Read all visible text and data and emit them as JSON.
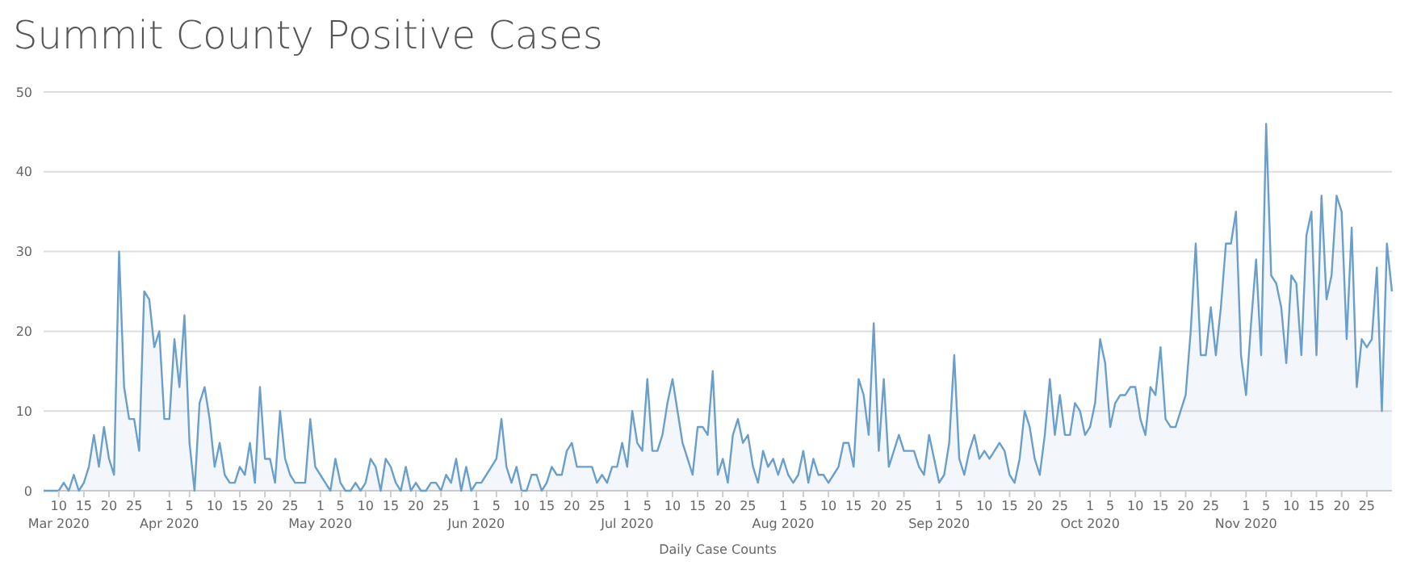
{
  "chart_data": {
    "type": "area",
    "title": "Summit County Positive Cases",
    "xlabel": "Daily Case Counts",
    "xlim": [
      "2020-03-07",
      "2020-11-30"
    ],
    "xticks": [
      {
        "value": "2020-03-10",
        "label": "10\nMar 2020"
      },
      {
        "value": "2020-03-15",
        "label": "15"
      },
      {
        "value": "2020-03-20",
        "label": "20"
      },
      {
        "value": "2020-03-25",
        "label": "25"
      },
      {
        "value": "2020-04-01",
        "label": "1\nApr 2020"
      },
      {
        "value": "2020-04-05",
        "label": "5"
      },
      {
        "value": "2020-04-10",
        "label": "10"
      },
      {
        "value": "2020-04-15",
        "label": "15"
      },
      {
        "value": "2020-04-20",
        "label": "20"
      },
      {
        "value": "2020-04-25",
        "label": "25"
      },
      {
        "value": "2020-05-01",
        "label": "1\nMay 2020"
      },
      {
        "value": "2020-05-05",
        "label": "5"
      },
      {
        "value": "2020-05-10",
        "label": "10"
      },
      {
        "value": "2020-05-15",
        "label": "15"
      },
      {
        "value": "2020-05-20",
        "label": "20"
      },
      {
        "value": "2020-05-25",
        "label": "25"
      },
      {
        "value": "2020-06-01",
        "label": "1\nJun 2020"
      },
      {
        "value": "2020-06-05",
        "label": "5"
      },
      {
        "value": "2020-06-10",
        "label": "10"
      },
      {
        "value": "2020-06-15",
        "label": "15"
      },
      {
        "value": "2020-06-20",
        "label": "20"
      },
      {
        "value": "2020-06-25",
        "label": "25"
      },
      {
        "value": "2020-07-01",
        "label": "1\nJul 2020"
      },
      {
        "value": "2020-07-05",
        "label": "5"
      },
      {
        "value": "2020-07-10",
        "label": "10"
      },
      {
        "value": "2020-07-15",
        "label": "15"
      },
      {
        "value": "2020-07-20",
        "label": "20"
      },
      {
        "value": "2020-07-25",
        "label": "25"
      },
      {
        "value": "2020-08-01",
        "label": "1\nAug 2020"
      },
      {
        "value": "2020-08-05",
        "label": "5"
      },
      {
        "value": "2020-08-10",
        "label": "10"
      },
      {
        "value": "2020-08-15",
        "label": "15"
      },
      {
        "value": "2020-08-20",
        "label": "20"
      },
      {
        "value": "2020-08-25",
        "label": "25"
      },
      {
        "value": "2020-09-01",
        "label": "1\nSep 2020"
      },
      {
        "value": "2020-09-05",
        "label": "5"
      },
      {
        "value": "2020-09-10",
        "label": "10"
      },
      {
        "value": "2020-09-15",
        "label": "15"
      },
      {
        "value": "2020-09-20",
        "label": "20"
      },
      {
        "value": "2020-09-25",
        "label": "25"
      },
      {
        "value": "2020-10-01",
        "label": "1\nOct 2020"
      },
      {
        "value": "2020-10-05",
        "label": "5"
      },
      {
        "value": "2020-10-10",
        "label": "10"
      },
      {
        "value": "2020-10-15",
        "label": "15"
      },
      {
        "value": "2020-10-20",
        "label": "20"
      },
      {
        "value": "2020-10-25",
        "label": "25"
      },
      {
        "value": "2020-11-01",
        "label": "1\nNov 2020"
      },
      {
        "value": "2020-11-05",
        "label": "5"
      },
      {
        "value": "2020-11-10",
        "label": "10"
      },
      {
        "value": "2020-11-15",
        "label": "15"
      },
      {
        "value": "2020-11-20",
        "label": "20"
      },
      {
        "value": "2020-11-25",
        "label": "25"
      }
    ],
    "ylim": [
      0,
      50
    ],
    "yticks": [
      0,
      10,
      20,
      30,
      40,
      50
    ],
    "grid": "y",
    "x": [
      "2020-03-07",
      "2020-03-08",
      "2020-03-09",
      "2020-03-10",
      "2020-03-11",
      "2020-03-12",
      "2020-03-13",
      "2020-03-14",
      "2020-03-15",
      "2020-03-16",
      "2020-03-17",
      "2020-03-18",
      "2020-03-19",
      "2020-03-20",
      "2020-03-21",
      "2020-03-22",
      "2020-03-23",
      "2020-03-24",
      "2020-03-25",
      "2020-03-26",
      "2020-03-27",
      "2020-03-28",
      "2020-03-29",
      "2020-03-30",
      "2020-03-31",
      "2020-04-01",
      "2020-04-02",
      "2020-04-03",
      "2020-04-04",
      "2020-04-05",
      "2020-04-06",
      "2020-04-07",
      "2020-04-08",
      "2020-04-09",
      "2020-04-10",
      "2020-04-11",
      "2020-04-12",
      "2020-04-13",
      "2020-04-14",
      "2020-04-15",
      "2020-04-16",
      "2020-04-17",
      "2020-04-18",
      "2020-04-19",
      "2020-04-20",
      "2020-04-21",
      "2020-04-22",
      "2020-04-23",
      "2020-04-24",
      "2020-04-25",
      "2020-04-26",
      "2020-04-27",
      "2020-04-28",
      "2020-04-29",
      "2020-04-30",
      "2020-05-01",
      "2020-05-02",
      "2020-05-03",
      "2020-05-04",
      "2020-05-05",
      "2020-05-06",
      "2020-05-07",
      "2020-05-08",
      "2020-05-09",
      "2020-05-10",
      "2020-05-11",
      "2020-05-12",
      "2020-05-13",
      "2020-05-14",
      "2020-05-15",
      "2020-05-16",
      "2020-05-17",
      "2020-05-18",
      "2020-05-19",
      "2020-05-20",
      "2020-05-21",
      "2020-05-22",
      "2020-05-23",
      "2020-05-24",
      "2020-05-25",
      "2020-05-26",
      "2020-05-27",
      "2020-05-28",
      "2020-05-29",
      "2020-05-30",
      "2020-05-31",
      "2020-06-01",
      "2020-06-02",
      "2020-06-03",
      "2020-06-04",
      "2020-06-05",
      "2020-06-06",
      "2020-06-07",
      "2020-06-08",
      "2020-06-09",
      "2020-06-10",
      "2020-06-11",
      "2020-06-12",
      "2020-06-13",
      "2020-06-14",
      "2020-06-15",
      "2020-06-16",
      "2020-06-17",
      "2020-06-18",
      "2020-06-19",
      "2020-06-20",
      "2020-06-21",
      "2020-06-22",
      "2020-06-23",
      "2020-06-24",
      "2020-06-25",
      "2020-06-26",
      "2020-06-27",
      "2020-06-28",
      "2020-06-29",
      "2020-06-30",
      "2020-07-01",
      "2020-07-02",
      "2020-07-03",
      "2020-07-04",
      "2020-07-05",
      "2020-07-06",
      "2020-07-07",
      "2020-07-08",
      "2020-07-09",
      "2020-07-10",
      "2020-07-11",
      "2020-07-12",
      "2020-07-13",
      "2020-07-14",
      "2020-07-15",
      "2020-07-16",
      "2020-07-17",
      "2020-07-18",
      "2020-07-19",
      "2020-07-20",
      "2020-07-21",
      "2020-07-22",
      "2020-07-23",
      "2020-07-24",
      "2020-07-25",
      "2020-07-26",
      "2020-07-27",
      "2020-07-28",
      "2020-07-29",
      "2020-07-30",
      "2020-07-31",
      "2020-08-01",
      "2020-08-02",
      "2020-08-03",
      "2020-08-04",
      "2020-08-05",
      "2020-08-06",
      "2020-08-07",
      "2020-08-08",
      "2020-08-09",
      "2020-08-10",
      "2020-08-11",
      "2020-08-12",
      "2020-08-13",
      "2020-08-14",
      "2020-08-15",
      "2020-08-16",
      "2020-08-17",
      "2020-08-18",
      "2020-08-19",
      "2020-08-20",
      "2020-08-21",
      "2020-08-22",
      "2020-08-23",
      "2020-08-24",
      "2020-08-25",
      "2020-08-26",
      "2020-08-27",
      "2020-08-28",
      "2020-08-29",
      "2020-08-30",
      "2020-08-31",
      "2020-09-01",
      "2020-09-02",
      "2020-09-03",
      "2020-09-04",
      "2020-09-05",
      "2020-09-06",
      "2020-09-07",
      "2020-09-08",
      "2020-09-09",
      "2020-09-10",
      "2020-09-11",
      "2020-09-12",
      "2020-09-13",
      "2020-09-14",
      "2020-09-15",
      "2020-09-16",
      "2020-09-17",
      "2020-09-18",
      "2020-09-19",
      "2020-09-20",
      "2020-09-21",
      "2020-09-22",
      "2020-09-23",
      "2020-09-24",
      "2020-09-25",
      "2020-09-26",
      "2020-09-27",
      "2020-09-28",
      "2020-09-29",
      "2020-09-30",
      "2020-10-01",
      "2020-10-02",
      "2020-10-03",
      "2020-10-04",
      "2020-10-05",
      "2020-10-06",
      "2020-10-07",
      "2020-10-08",
      "2020-10-09",
      "2020-10-10",
      "2020-10-11",
      "2020-10-12",
      "2020-10-13",
      "2020-10-14",
      "2020-10-15",
      "2020-10-16",
      "2020-10-17",
      "2020-10-18",
      "2020-10-19",
      "2020-10-20",
      "2020-10-21",
      "2020-10-22",
      "2020-10-23",
      "2020-10-24",
      "2020-10-25",
      "2020-10-26",
      "2020-10-27",
      "2020-10-28",
      "2020-10-29",
      "2020-10-30",
      "2020-10-31",
      "2020-11-01",
      "2020-11-02",
      "2020-11-03",
      "2020-11-04",
      "2020-11-05",
      "2020-11-06",
      "2020-11-07",
      "2020-11-08",
      "2020-11-09",
      "2020-11-10",
      "2020-11-11",
      "2020-11-12",
      "2020-11-13",
      "2020-11-14",
      "2020-11-15",
      "2020-11-16",
      "2020-11-17",
      "2020-11-18",
      "2020-11-19",
      "2020-11-20",
      "2020-11-21",
      "2020-11-22",
      "2020-11-23",
      "2020-11-24",
      "2020-11-25",
      "2020-11-26",
      "2020-11-27",
      "2020-11-28",
      "2020-11-29",
      "2020-11-30"
    ],
    "series": [
      {
        "color": "#6a9fcb",
        "values": [
          0,
          0,
          0,
          0,
          1,
          0,
          2,
          0,
          1,
          3,
          7,
          3,
          8,
          4,
          2,
          30,
          13,
          9,
          9,
          5,
          25,
          24,
          18,
          20,
          9,
          9,
          19,
          13,
          22,
          6,
          0,
          11,
          13,
          9,
          3,
          6,
          2,
          1,
          1,
          3,
          2,
          6,
          1,
          13,
          4,
          4,
          1,
          10,
          4,
          2,
          1,
          1,
          1,
          9,
          3,
          2,
          1,
          0,
          4,
          1,
          0,
          0,
          1,
          0,
          1,
          4,
          3,
          0,
          4,
          3,
          1,
          0,
          3,
          0,
          1,
          0,
          0,
          1,
          1,
          0,
          2,
          1,
          4,
          0,
          3,
          0,
          1,
          1,
          2,
          3,
          4,
          9,
          3,
          1,
          3,
          0,
          0,
          2,
          2,
          0,
          1,
          3,
          2,
          2,
          5,
          6,
          3,
          3,
          3,
          3,
          1,
          2,
          1,
          3,
          3,
          6,
          3,
          10,
          6,
          5,
          14,
          5,
          5,
          7,
          11,
          14,
          10,
          6,
          4,
          2,
          8,
          8,
          7,
          15,
          2,
          4,
          1,
          7,
          9,
          6,
          7,
          3,
          1,
          5,
          3,
          4,
          2,
          4,
          2,
          1,
          2,
          5,
          1,
          4,
          2,
          2,
          1,
          2,
          3,
          6,
          6,
          3,
          14,
          12,
          7,
          21,
          5,
          14,
          3,
          5,
          7,
          5,
          5,
          5,
          3,
          2,
          7,
          4,
          1,
          2,
          6,
          17,
          4,
          2,
          5,
          7,
          4,
          5,
          4,
          5,
          6,
          5,
          2,
          1,
          4,
          10,
          8,
          4,
          2,
          7,
          14,
          7,
          12,
          7,
          7,
          11,
          10,
          7,
          8,
          11,
          19,
          16,
          8,
          11,
          12,
          12,
          13,
          13,
          9,
          7,
          13,
          12,
          18,
          9,
          8,
          8,
          10,
          12,
          20,
          31,
          17,
          17,
          23,
          17,
          23,
          31,
          31,
          35,
          17,
          12,
          21,
          29,
          17,
          46,
          27,
          26,
          23,
          16,
          27,
          26,
          17,
          32,
          35,
          17,
          37,
          24,
          27,
          37,
          35,
          19,
          33,
          13,
          19,
          18,
          19,
          28,
          10,
          31,
          25
        ]
      }
    ]
  }
}
